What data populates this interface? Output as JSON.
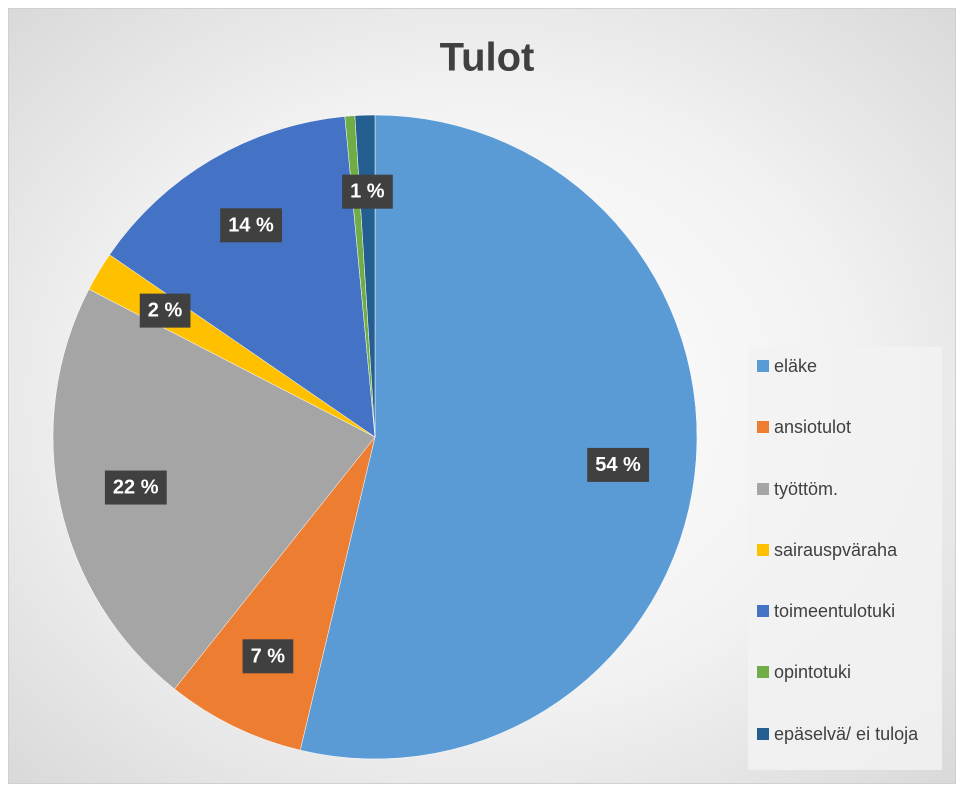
{
  "chart_data": {
    "type": "pie",
    "title": "Tulot",
    "categories": [
      "eläke",
      "ansiotulot",
      "työttöm.",
      "sairauspväraha",
      "toimeentulotuki",
      "opintotuki",
      "epäselvä/ ei tuloja"
    ],
    "values": [
      54,
      7,
      22,
      2,
      14,
      0.5,
      1
    ],
    "value_labels": [
      "54 %",
      "7 %",
      "22 %",
      "2 %",
      "14 %",
      null,
      "1 %"
    ],
    "colors": [
      "#5b9bd5",
      "#ed7d31",
      "#a5a5a5",
      "#ffc000",
      "#4472c4",
      "#70ad47",
      "#255e91"
    ],
    "legend": "right"
  }
}
